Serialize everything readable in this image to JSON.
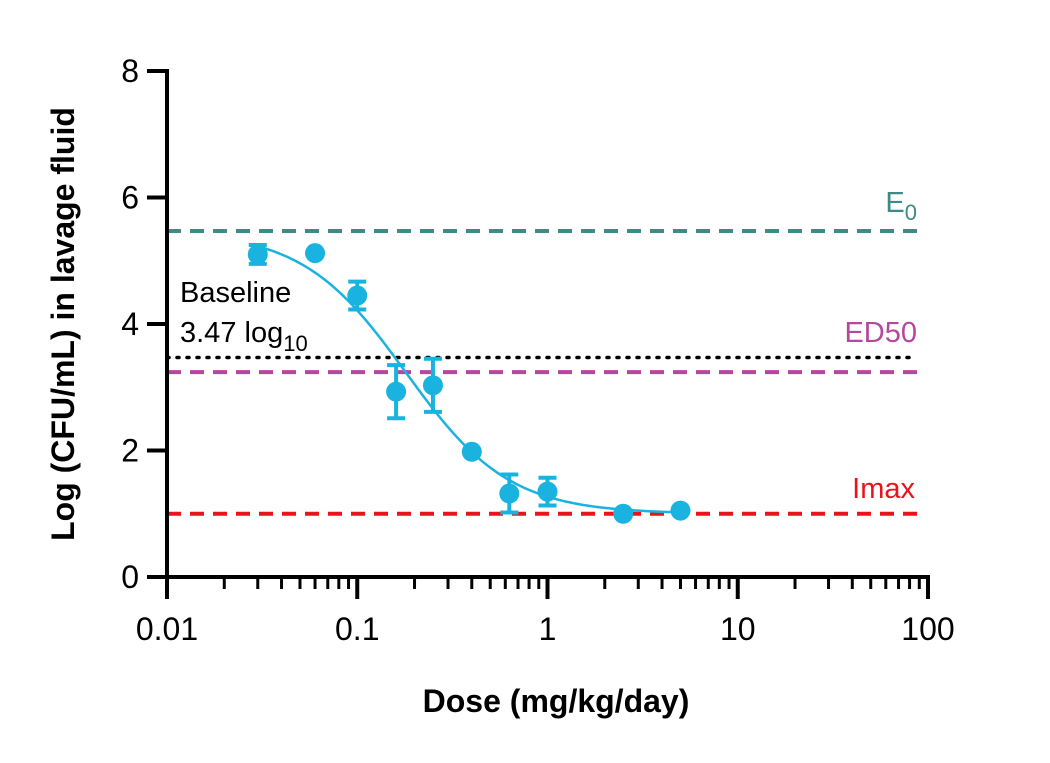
{
  "chart_data": {
    "type": "scatter",
    "title": "",
    "xlabel": "Dose (mg/kg/day)",
    "ylabel": "Log (CFU/mL) in lavage fluid",
    "x_scale": "log",
    "xlim": [
      0.01,
      100
    ],
    "ylim": [
      0,
      8
    ],
    "grid": false,
    "x_ticks": [
      {
        "value": 0.01,
        "label": "0.01"
      },
      {
        "value": 0.1,
        "label": "0.1"
      },
      {
        "value": 1,
        "label": "1"
      },
      {
        "value": 10,
        "label": "10"
      },
      {
        "value": 100,
        "label": "100"
      }
    ],
    "y_ticks": [
      {
        "value": 0,
        "label": "0"
      },
      {
        "value": 2,
        "label": "2"
      },
      {
        "value": 4,
        "label": "4"
      },
      {
        "value": 6,
        "label": "6"
      },
      {
        "value": 8,
        "label": "8"
      }
    ],
    "series": [
      {
        "color": "#1ab3e0",
        "points": [
          {
            "x": 0.03,
            "y": 5.1,
            "err": 0.15
          },
          {
            "x": 0.06,
            "y": 5.12,
            "err": 0
          },
          {
            "x": 0.1,
            "y": 4.45,
            "err": 0.22
          },
          {
            "x": 0.16,
            "y": 2.93,
            "err": 0.42
          },
          {
            "x": 0.25,
            "y": 3.03,
            "err": 0.42
          },
          {
            "x": 0.4,
            "y": 1.98,
            "err": 0
          },
          {
            "x": 0.63,
            "y": 1.32,
            "err": 0.3
          },
          {
            "x": 1.0,
            "y": 1.35,
            "err": 0.22
          },
          {
            "x": 2.5,
            "y": 1.0,
            "err": 0
          },
          {
            "x": 5.0,
            "y": 1.05,
            "err": 0
          }
        ]
      }
    ],
    "fit": {
      "color": "#1ab3e0",
      "model": "sigmoid Emax",
      "x_range": [
        0.03,
        4.5
      ],
      "top": 5.47,
      "bottom": 1.0,
      "ed50": 0.18,
      "hill": 1.6
    },
    "reference_lines": [
      {
        "id": "e0",
        "y": 5.47,
        "label_main": "E",
        "label_sub": "0",
        "color": "#3d8a86",
        "style": "dashed"
      },
      {
        "id": "ed50",
        "y": 3.24,
        "label_main": "ED50",
        "label_sub": "",
        "color": "#b5479f",
        "style": "dashed"
      },
      {
        "id": "baseline",
        "y": 3.47,
        "label_main": "",
        "label_sub": "",
        "color": "#000000",
        "style": "dotted"
      },
      {
        "id": "imax",
        "y": 1.0,
        "label_main": "Imax",
        "label_sub": "",
        "color": "#e8141b",
        "style": "dashed"
      }
    ],
    "annotations": {
      "baseline_line1": "Baseline",
      "baseline_line2_main": "3.47 log",
      "baseline_line2_sub": "10"
    }
  }
}
